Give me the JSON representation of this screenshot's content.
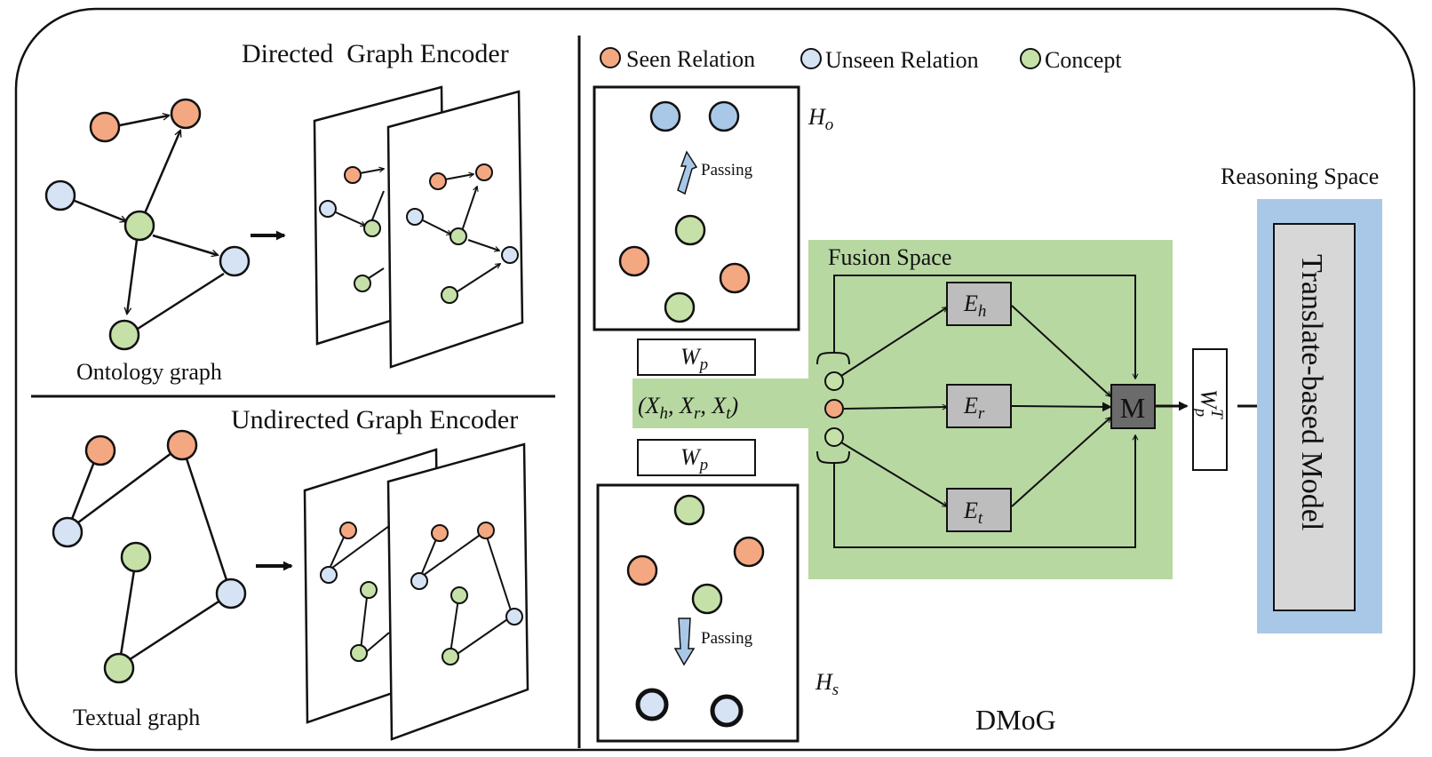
{
  "legend": {
    "seen": "Seen Relation",
    "unseen": "Unseen Relation",
    "concept": "Concept"
  },
  "left_top": {
    "title": "Directed  Graph Encoder",
    "graph_label": "Ontology graph"
  },
  "left_bottom": {
    "title": "Undirected Graph Encoder",
    "graph_label": "Textual graph"
  },
  "middle": {
    "passing_top": "Passing",
    "passing_bottom": "Passing",
    "h_o_base": "H",
    "h_o_sub": "o",
    "h_s_base": "H",
    "h_s_sub": "s",
    "wp_base": "W",
    "wp_sub": "p",
    "input_tuple": "(X",
    "input_h": "h",
    "input_sep1": ", X",
    "input_r": "r",
    "input_sep2": ", X",
    "input_t": "t",
    "input_close": ")"
  },
  "fusion": {
    "title": "Fusion Space",
    "eh_base": "E",
    "eh_sub": "h",
    "er_base": "E",
    "er_sub": "r",
    "et_base": "E",
    "et_sub": "t",
    "m": "M",
    "wpt_base": "W",
    "wpt_sub": "p",
    "wpt_sup": "T"
  },
  "reasoning": {
    "title": "Reasoning Space",
    "model": "Translate-based Model"
  },
  "footer": {
    "name": "DMoG"
  },
  "colors": {
    "seen": "#f4a882",
    "unseen": "#d6e3f5",
    "concept": "#c6e1a8",
    "fusion_bg": "#b8d8a2",
    "reasoning_bg": "#a9c8e8",
    "model_box": "#d7d7d7",
    "encoder_box": "#bdbdbd",
    "m_box": "#6b6b6b"
  }
}
